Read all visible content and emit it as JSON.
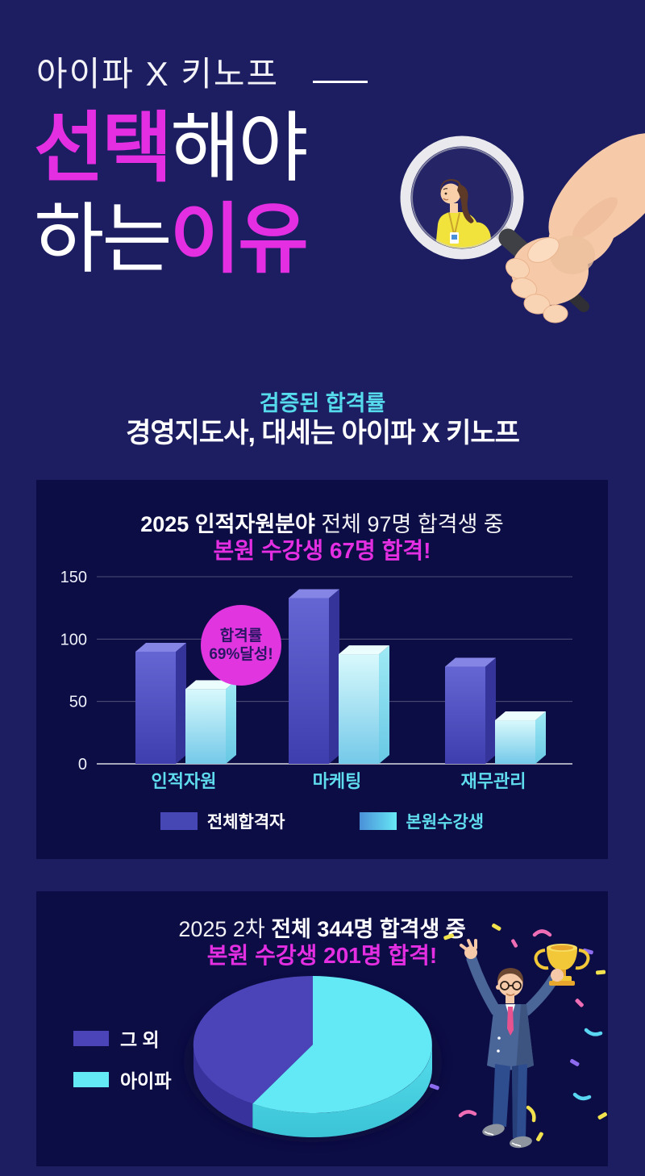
{
  "theme": {
    "background": "#1d1d62",
    "panel_background": "#0d0d45",
    "magenta": "#e32ee2",
    "badge_pink": "#e135df",
    "cyan_text": "#55dbeb",
    "bar_purple": "#4747bb",
    "bar_cyan": "#7fdcf0",
    "pie_purple": "#4a44b8",
    "pie_cyan": "#63e8f6"
  },
  "header": {
    "brand": "아이파 X 키노프",
    "title_line1": [
      {
        "text": "선택",
        "accent": true
      },
      {
        "text": "해야",
        "accent": false
      }
    ],
    "title_line2": [
      {
        "text": "하는",
        "accent": false
      },
      {
        "text": "이유",
        "accent": true
      }
    ]
  },
  "intro": {
    "kicker": "검증된 합격률",
    "headline": "경영지도사, 대세는 아이파 X 키노프"
  },
  "bar_section": {
    "title_strong": "2025 인적자원분야",
    "title_rest": " 전체 97명 합격생 중",
    "subtitle": "본원 수강생 67명 합격!",
    "badge_line1": "합격률",
    "badge_line2": "69%달성!",
    "legend": [
      {
        "label": "전체합격자",
        "color": "#4646b4"
      },
      {
        "label": "본원수강생",
        "color_start": "#4a90d8",
        "color_end": "#67e8f5"
      }
    ]
  },
  "pie_section": {
    "title_light": "2025 2차 ",
    "title_strong": "전체 344명 합격생 중",
    "subtitle": "본원 수강생 201명 합격!",
    "legend": [
      {
        "label": "그 외",
        "color": "#4a44b8"
      },
      {
        "label": "아이파",
        "color": "#63e8f6"
      }
    ]
  },
  "chart_data": [
    {
      "type": "bar",
      "title": "2025 인적자원분야 전체 97명 합격생 중 본원 수강생 67명 합격!",
      "categories": [
        "인적자원",
        "마케팅",
        "재무관리"
      ],
      "series": [
        {
          "name": "전체합격자",
          "values": [
            97,
            140,
            85
          ],
          "color": "#4747bb"
        },
        {
          "name": "본원수강생",
          "values": [
            67,
            95,
            42
          ],
          "color": "#7fdcf0"
        }
      ],
      "yticks": [
        0,
        50,
        100,
        150
      ],
      "ylim": [
        0,
        150
      ],
      "grid": true,
      "legend_position": "bottom",
      "annotation": "합격률 69%달성!"
    },
    {
      "type": "pie",
      "title": "2025 2차 전체 344명 합격생 중 본원 수강생 201명 합격!",
      "total": 344,
      "start_angle_deg": -90,
      "direction": "clockwise",
      "slices": [
        {
          "label": "아이파",
          "value": 201,
          "color": "#63e8f6"
        },
        {
          "label": "그 외",
          "value": 143,
          "color": "#4a44b8"
        }
      ],
      "legend_position": "left"
    }
  ]
}
